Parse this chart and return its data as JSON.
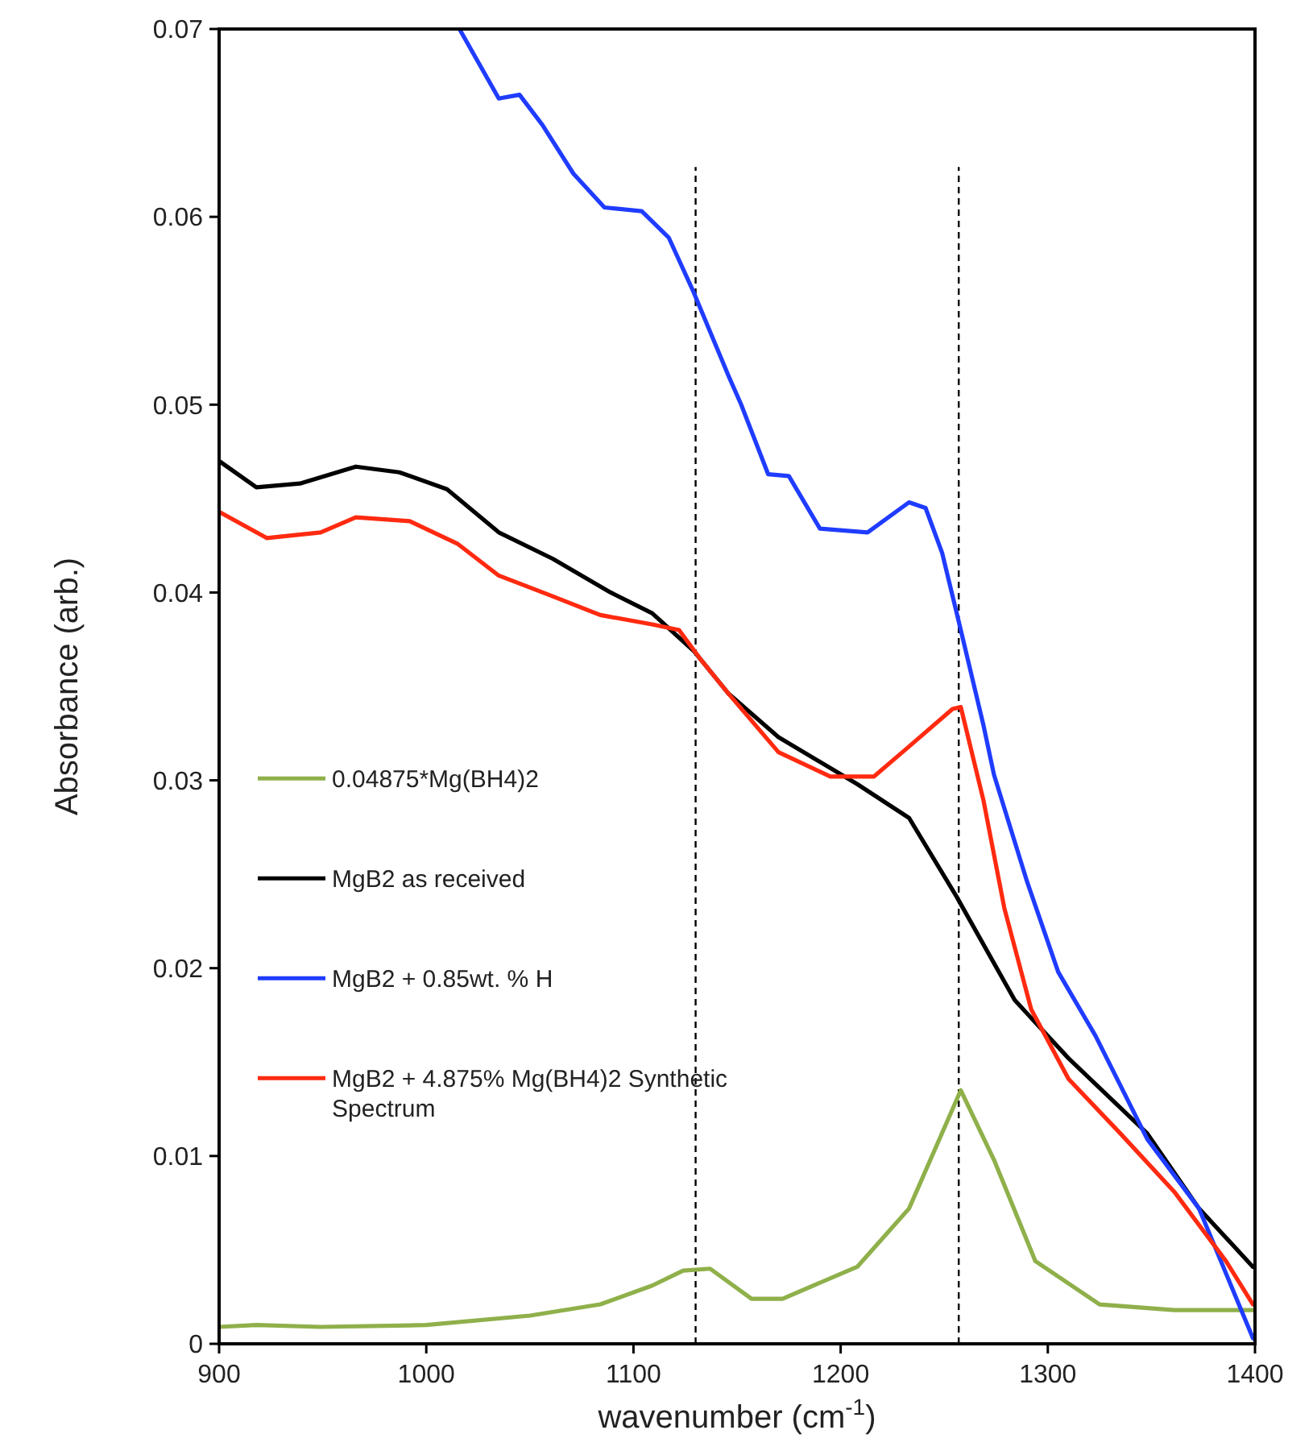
{
  "chart_data": {
    "type": "line",
    "xlabel": "wavenumber (cm$^{-1}$)",
    "ylabel": "Absorbance (arb.)",
    "xlim": [
      900,
      1400
    ],
    "xticks": [
      900,
      1000,
      1100,
      1200,
      1300,
      1400
    ],
    "ylim": [
      0,
      0.07
    ],
    "yticks": [
      0,
      0.01,
      0.02,
      0.03,
      0.04,
      0.05,
      0.06,
      0.07
    ],
    "legend": "left",
    "grid": false,
    "line_style": "solid",
    "marker": "none",
    "series": [
      {
        "name": "0.04875*Mg(BH4)2",
        "color": "#8fb04a",
        "x": [
          900,
          918,
          949,
          1000,
          1050,
          1084,
          1109,
          1124,
          1137,
          1157,
          1172,
          1208,
          1233,
          1258,
          1274,
          1294,
          1325,
          1361,
          1399
        ],
        "values": [
          0.0009,
          0.001,
          0.0009,
          0.001,
          0.0015,
          0.0021,
          0.0031,
          0.0039,
          0.004,
          0.0024,
          0.0024,
          0.0041,
          0.0072,
          0.0135,
          0.0098,
          0.0044,
          0.0021,
          0.0018,
          0.0018
        ]
      },
      {
        "name": "MgB2 as received",
        "color": "#000000",
        "x": [
          900,
          918,
          939,
          966,
          987,
          1010,
          1035,
          1061,
          1089,
          1109,
          1129,
          1146,
          1170,
          1208,
          1233,
          1256,
          1284,
          1310,
          1348,
          1373,
          1399
        ],
        "values": [
          0.047,
          0.0456,
          0.0458,
          0.0467,
          0.0464,
          0.0455,
          0.0432,
          0.0418,
          0.04,
          0.0389,
          0.0369,
          0.0346,
          0.0323,
          0.0298,
          0.028,
          0.0238,
          0.0183,
          0.0152,
          0.0112,
          0.0072,
          0.0041
        ]
      },
      {
        "name": "MgB2 + 0.85wt. % H",
        "color": "#1f3cff",
        "x": [
          1016,
          1035,
          1045,
          1056,
          1071,
          1086,
          1104,
          1117,
          1129,
          1146,
          1152,
          1165,
          1175,
          1190,
          1213,
          1233,
          1241,
          1249,
          1258,
          1269,
          1274,
          1290,
          1305,
          1323,
          1348,
          1373,
          1399
        ],
        "values": [
          0.07,
          0.0663,
          0.0665,
          0.0649,
          0.0623,
          0.0605,
          0.0603,
          0.0589,
          0.056,
          0.0515,
          0.05,
          0.0463,
          0.0462,
          0.0434,
          0.0432,
          0.0448,
          0.0445,
          0.0421,
          0.038,
          0.0329,
          0.0303,
          0.0246,
          0.0198,
          0.0164,
          0.0109,
          0.0072,
          0.0003
        ]
      },
      {
        "name": "MgB2 + 4.875% Mg(BH4)2 Synthetic Spectrum",
        "color": "#ff2a10",
        "x": [
          900,
          923,
          949,
          966,
          992,
          1015,
          1035,
          1061,
          1084,
          1109,
          1122,
          1132,
          1146,
          1170,
          1195,
          1216,
          1233,
          1254,
          1258,
          1269,
          1279,
          1292,
          1310,
          1335,
          1361,
          1386,
          1399
        ],
        "values": [
          0.0443,
          0.0429,
          0.0432,
          0.044,
          0.0438,
          0.0426,
          0.0409,
          0.0398,
          0.0388,
          0.0383,
          0.038,
          0.0365,
          0.0346,
          0.0315,
          0.0302,
          0.0302,
          0.0318,
          0.0338,
          0.0339,
          0.0289,
          0.0232,
          0.0178,
          0.0141,
          0.0112,
          0.0081,
          0.0044,
          0.0021
        ]
      }
    ],
    "ref_lines": [
      {
        "axis": "x",
        "value": 1130,
        "color": "#000000",
        "line_style": "dashed"
      },
      {
        "axis": "x",
        "value": 1257,
        "color": "#000000",
        "line_style": "dashed"
      }
    ]
  }
}
